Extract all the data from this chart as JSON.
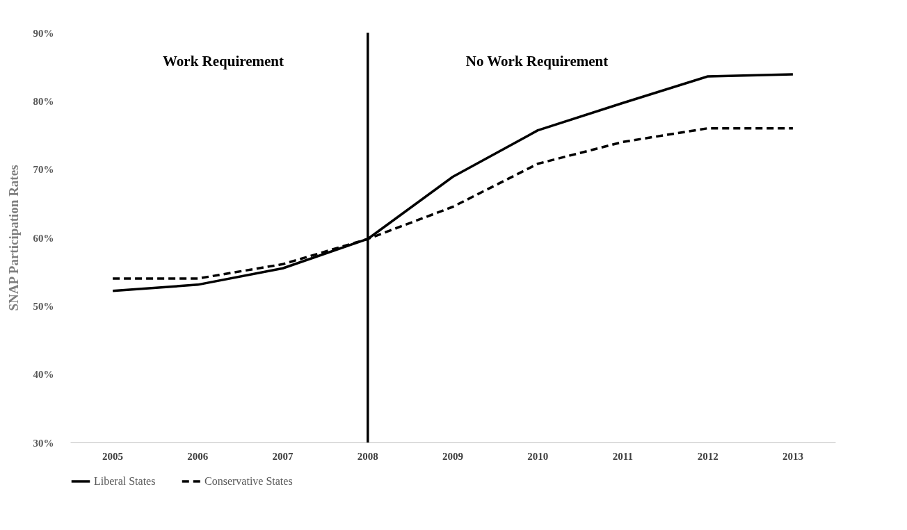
{
  "chart_data": {
    "type": "line",
    "ylabel": "SNAP Participation Rates",
    "categories": [
      "2005",
      "2006",
      "2007",
      "2008",
      "2009",
      "2010",
      "2011",
      "2012",
      "2013"
    ],
    "series": [
      {
        "name": "Liberal States",
        "color": "#000000",
        "line_style": "solid",
        "values": [
          52.2,
          53.1,
          55.5,
          59.8,
          68.9,
          75.7,
          79.7,
          83.6,
          83.9
        ]
      },
      {
        "name": "Conservative States",
        "color": "#000000",
        "line_style": "dashed",
        "values": [
          54.0,
          54.0,
          56.1,
          59.8,
          64.5,
          70.8,
          74.0,
          76.0,
          76.0
        ]
      }
    ],
    "ylim": [
      30,
      90
    ],
    "yticks": [
      {
        "value": 30,
        "label": "30%"
      },
      {
        "value": 40,
        "label": "40%"
      },
      {
        "value": 50,
        "label": "50%"
      },
      {
        "value": 60,
        "label": "60%"
      },
      {
        "value": 70,
        "label": "70%"
      },
      {
        "value": 80,
        "label": "80%"
      },
      {
        "value": 90,
        "label": "90%"
      }
    ],
    "ref_lines": [
      {
        "axis": "x",
        "value": "2008",
        "color": "#000000"
      }
    ],
    "annotations": [
      "Work Requirement",
      "No Work Requirement"
    ],
    "grid": false,
    "legend": "bottom",
    "marker": "none"
  }
}
